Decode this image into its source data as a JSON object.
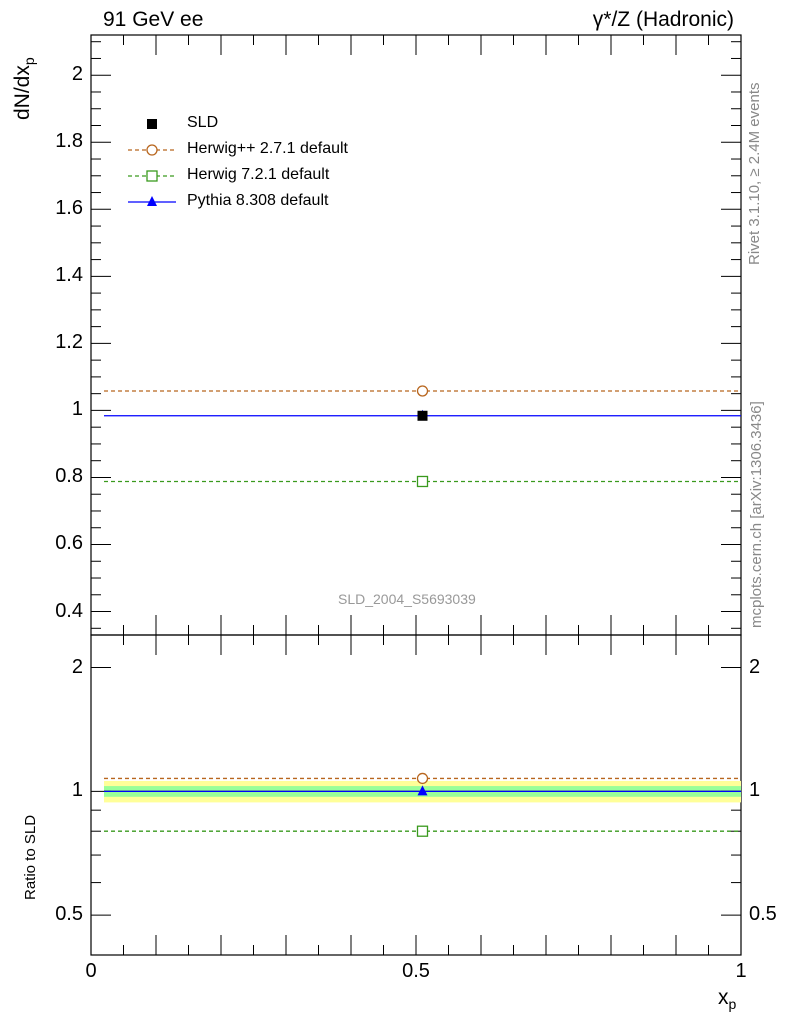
{
  "header": {
    "left": "91 GeV ee",
    "right": "γ*/Z (Hadronic)"
  },
  "side_texts": {
    "rivet": "Rivet 3.1.10, ≥ 2.4M events",
    "mcplots": "mcplots.cern.ch [arXiv:1306.3436]"
  },
  "watermark": "SLD_2004_S5693039",
  "colors": {
    "herwigpp": "#b8661e",
    "herwig7": "#3a9a1e",
    "pythia": "#0000ff",
    "band_inner": "#99ff99",
    "band_outer": "#ffff99"
  },
  "chart_data": [
    {
      "type": "scatter",
      "panel": "main",
      "ylabel": "dN/dxp",
      "ylim": [
        0.33,
        2.12
      ],
      "xlim": [
        0,
        1
      ],
      "yticks": [
        "0.4",
        "0.6",
        "0.8",
        "1",
        "1.2",
        "1.4",
        "1.6",
        "1.8",
        "2"
      ],
      "yticks_values": [
        0.4,
        0.6,
        0.8,
        1.0,
        1.2,
        1.4,
        1.6,
        1.8,
        2.0
      ],
      "legend_position": "top-left",
      "series": [
        {
          "name": "SLD",
          "style": "data",
          "marker": "filled-square",
          "x": [
            0.51
          ],
          "y": [
            0.984
          ],
          "xrange": [
            0.02,
            1.0
          ]
        },
        {
          "name": "Herwig++ 2.7.1 default",
          "style": "dashed",
          "marker": "open-circle",
          "x": [
            0.51
          ],
          "y": [
            1.058
          ],
          "xrange": [
            0.02,
            1.0
          ]
        },
        {
          "name": "Herwig 7.2.1 default",
          "style": "dashed",
          "marker": "open-square",
          "x": [
            0.51
          ],
          "y": [
            0.788
          ],
          "xrange": [
            0.02,
            1.0
          ]
        },
        {
          "name": "Pythia 8.308 default",
          "style": "solid",
          "marker": "filled-triangle",
          "x": [
            0.51
          ],
          "y": [
            0.984
          ],
          "xrange": [
            0.02,
            1.0
          ]
        }
      ]
    },
    {
      "type": "scatter",
      "panel": "ratio",
      "ylabel": "Ratio to SLD",
      "xlabel": "xp",
      "yscale": "log",
      "ylim": [
        0.4,
        2.4
      ],
      "xlim": [
        0,
        1
      ],
      "yticks": [
        "0.5",
        "1",
        "2"
      ],
      "yticks_values": [
        0.5,
        1.0,
        2.0
      ],
      "xticks": [
        "0",
        "0.5",
        "1"
      ],
      "xticks_values": [
        0,
        0.5,
        1.0
      ],
      "band": {
        "inner": [
          0.97,
          1.03
        ],
        "outer": [
          0.94,
          1.06
        ],
        "xrange": [
          0.02,
          1.0
        ]
      },
      "series": [
        {
          "name": "Herwig++ 2.7.1 default",
          "style": "dashed",
          "marker": "open-circle",
          "x": [
            0.51
          ],
          "y": [
            1.075
          ]
        },
        {
          "name": "Herwig 7.2.1 default",
          "style": "dashed",
          "marker": "open-square",
          "x": [
            0.51
          ],
          "y": [
            0.8
          ]
        },
        {
          "name": "Pythia 8.308 default",
          "style": "solid",
          "marker": "filled-triangle",
          "x": [
            0.51
          ],
          "y": [
            1.0
          ]
        }
      ]
    }
  ]
}
